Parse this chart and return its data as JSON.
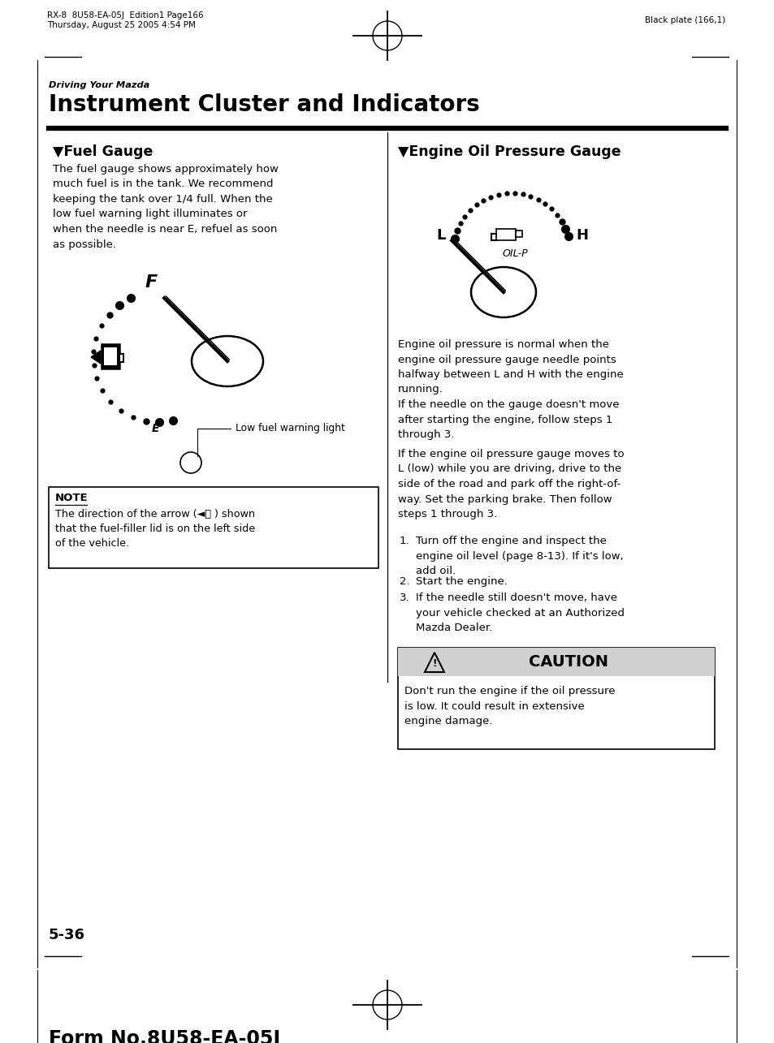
{
  "page_header_left1": "RX-8  8U58-EA-05J  Edition1 Page166",
  "page_header_left2": "Thursday, August 25 2005 4:54 PM",
  "page_header_right": "Black plate (166,1)",
  "section_super": "Driving Your Mazda",
  "section_title": "Instrument Cluster and Indicators",
  "left_section_title": "Fuel Gauge",
  "left_body": "The fuel gauge shows approximately how\nmuch fuel is in the tank. We recommend\nkeeping the tank over 1/4 full. When the\nlow fuel warning light illuminates or\nwhen the needle is near E, refuel as soon\nas possible.",
  "low_fuel_label": "Low fuel warning light",
  "note_title": "NOTE",
  "note_body": "The direction of the arrow (◄⛽ ) shown\nthat the fuel-filler lid is on the left side\nof the vehicle.",
  "right_section_title": "Engine Oil Pressure Gauge",
  "right_body1": "Engine oil pressure is normal when the\nengine oil pressure gauge needle points\nhalfway between L and H with the engine\nrunning.",
  "right_body2": "If the needle on the gauge doesn't move\nafter starting the engine, follow steps 1\nthrough 3.",
  "right_body3": "If the engine oil pressure gauge moves to\nL (low) while you are driving, drive to the\nside of the road and park off the right-of-\nway. Set the parking brake. Then follow\nsteps 1 through 3.",
  "step1": "Turn off the engine and inspect the\nengine oil level (page 8-13). If it's low,\nadd oil.",
  "step2": "Start the engine.",
  "step3": "If the needle still doesn't move, have\nyour vehicle checked at an Authorized\nMazda Dealer.",
  "caution_title": "CAUTION",
  "caution_body": "Don't run the engine if the oil pressure\nis low. It could result in extensive\nengine damage.",
  "page_number": "5-36",
  "form_number": "Form No.8U58-EA-05J",
  "bg_color": "#ffffff",
  "text_color": "#000000"
}
